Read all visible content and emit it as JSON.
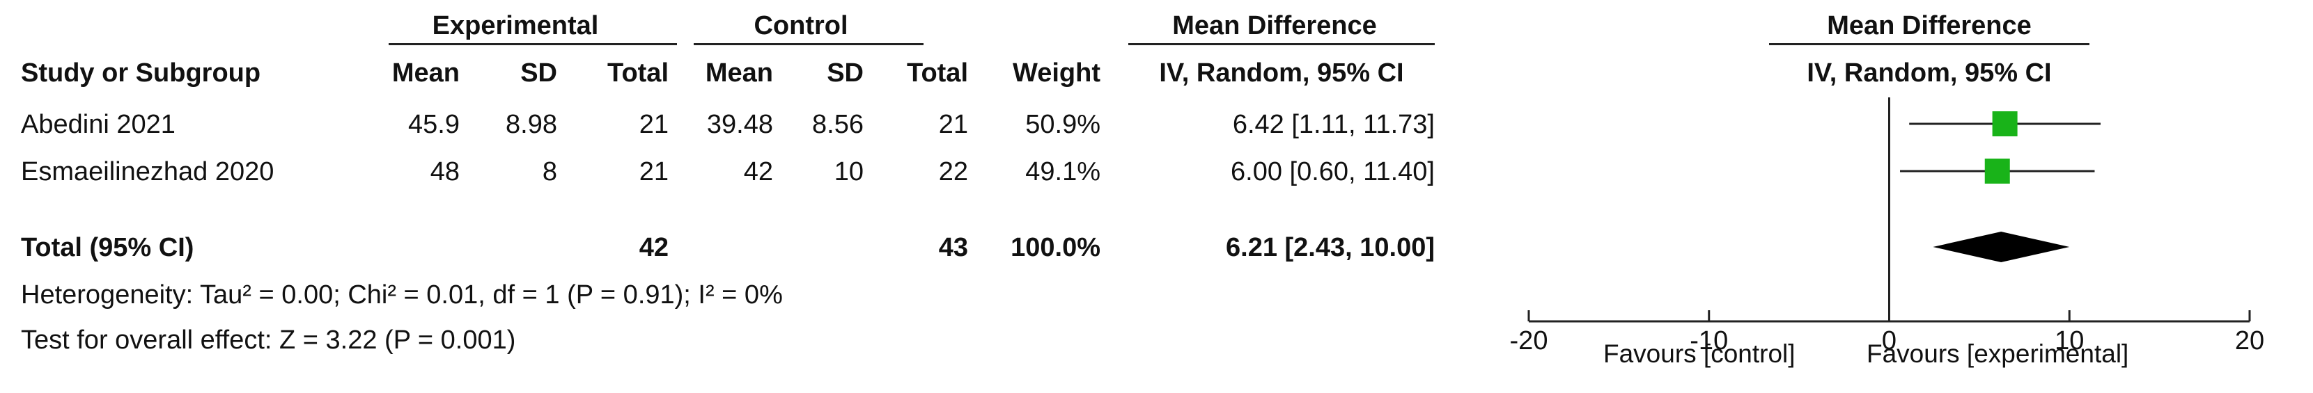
{
  "header": {
    "experimental": "Experimental",
    "control": "Control",
    "mean_difference_table": "Mean Difference",
    "mean_difference_plot": "Mean Difference",
    "study_col": "Study or Subgroup",
    "mean": "Mean",
    "sd": "SD",
    "total": "Total",
    "weight": "Weight",
    "method_table": "IV, Random, 95% CI",
    "method_plot": "IV, Random, 95% CI"
  },
  "studies": [
    {
      "name": "Abedini 2021",
      "e_mean": "45.9",
      "e_sd": "8.98",
      "e_total": "21",
      "c_mean": "39.48",
      "c_sd": "8.56",
      "c_total": "21",
      "weight": "50.9%",
      "md_text": "6.42 [1.11, 11.73]"
    },
    {
      "name": "Esmaeilinezhad 2020",
      "e_mean": "48",
      "e_sd": "8",
      "e_total": "21",
      "c_mean": "42",
      "c_sd": "10",
      "c_total": "22",
      "weight": "49.1%",
      "md_text": "6.00 [0.60, 11.40]"
    }
  ],
  "total": {
    "label": "Total (95% CI)",
    "e_total": "42",
    "c_total": "43",
    "weight": "100.0%",
    "md_text": "6.21 [2.43, 10.00]"
  },
  "heterogeneity": "Heterogeneity: Tau² = 0.00; Chi² = 0.01, df = 1 (P = 0.91); I² = 0%",
  "overall_effect": "Test for overall effect: Z = 3.22 (P = 0.001)",
  "favours_left": "Favours [control]",
  "favours_right": "Favours [experimental]",
  "colors": {
    "marker": "#19b319",
    "diamond": "#000000",
    "line": "#222222"
  },
  "chart_data": {
    "type": "forest",
    "x_axis": {
      "min": -20,
      "max": 20,
      "ticks": [
        -20,
        -10,
        0,
        10,
        20
      ],
      "tick_labels": [
        "-20",
        "-10",
        "0",
        "10",
        "20"
      ]
    },
    "studies": [
      {
        "name": "Abedini 2021",
        "md": 6.42,
        "ci_low": 1.11,
        "ci_high": 11.73,
        "weight": 50.9
      },
      {
        "name": "Esmaeilinezhad 2020",
        "md": 6.0,
        "ci_low": 0.6,
        "ci_high": 11.4,
        "weight": 49.1
      }
    ],
    "pooled": {
      "md": 6.21,
      "ci_low": 2.43,
      "ci_high": 10.0
    }
  }
}
